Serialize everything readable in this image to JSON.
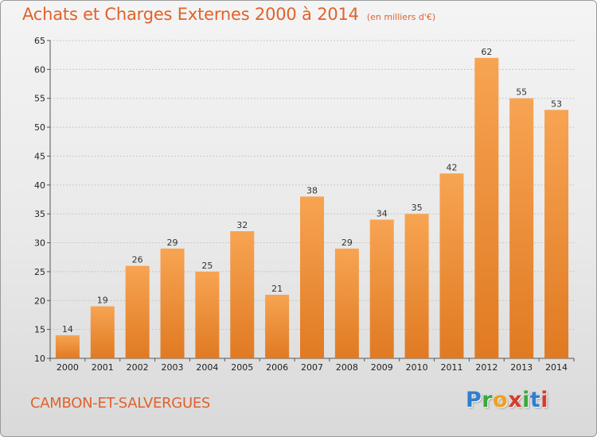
{
  "title": "Achats et Charges Externes 2000 à 2014",
  "subtitle": "(en milliers d'€)",
  "commune": "CAMBON-ET-SALVERGUES",
  "logo": {
    "letters": [
      {
        "char": "P",
        "color": "#2f7fd0"
      },
      {
        "char": "r",
        "color": "#39a83a"
      },
      {
        "char": "o",
        "color": "#f0a020"
      },
      {
        "char": "x",
        "color": "#d63b2c"
      },
      {
        "char": "i",
        "color": "#39a83a"
      },
      {
        "char": "t",
        "color": "#2f7fd0"
      },
      {
        "char": "i",
        "color": "#d63b2c"
      }
    ]
  },
  "colors": {
    "bar_top": "#f7a452",
    "bar_bottom": "#e07a22",
    "title": "#e0622a"
  },
  "chart_data": {
    "type": "bar",
    "categories": [
      "2000",
      "2001",
      "2002",
      "2003",
      "2004",
      "2005",
      "2006",
      "2007",
      "2008",
      "2009",
      "2010",
      "2011",
      "2012",
      "2013",
      "2014"
    ],
    "values": [
      14,
      19,
      26,
      29,
      25,
      32,
      21,
      38,
      29,
      34,
      35,
      42,
      62,
      55,
      53
    ],
    "ylim": [
      10,
      65
    ],
    "yticks": [
      10,
      15,
      20,
      25,
      30,
      35,
      40,
      45,
      50,
      55,
      60,
      65
    ],
    "grid": true,
    "data_labels": true,
    "legend": "none"
  }
}
